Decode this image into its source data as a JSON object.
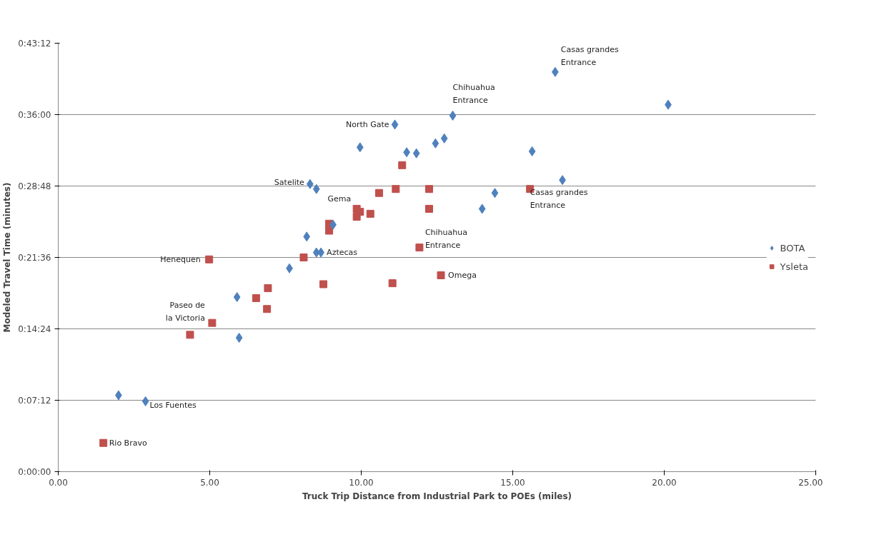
{
  "chart_data": {
    "type": "scatter",
    "xlabel": "Truck Trip Distance from Industrial Park to POEs (miles)",
    "ylabel": "Modeled Travel Time (minutes)",
    "xlim": [
      0,
      25
    ],
    "xticks": [
      {
        "value": 0,
        "label": "0.00"
      },
      {
        "value": 5,
        "label": "5.00"
      },
      {
        "value": 10,
        "label": "10.00"
      },
      {
        "value": 15,
        "label": "15.00"
      },
      {
        "value": 20,
        "label": "20.00"
      },
      {
        "value": 25,
        "label": "25.00"
      }
    ],
    "ylim": [
      0,
      43.2
    ],
    "yticks": [
      {
        "value": 0,
        "label": "0:00:00"
      },
      {
        "value": 7.2,
        "label": "0:07:12"
      },
      {
        "value": 14.4,
        "label": "0:14:24"
      },
      {
        "value": 21.6,
        "label": "0:21:36"
      },
      {
        "value": 28.8,
        "label": "0:28:48"
      },
      {
        "value": 36,
        "label": "0:36:00"
      },
      {
        "value": 43.2,
        "label": "0:43:12"
      }
    ],
    "grid": "y",
    "legend": "right",
    "series": [
      {
        "name": "BOTA",
        "color": "#4f81bd",
        "marker": "diamond",
        "x": [
          1.99,
          2.88,
          5.9,
          5.97,
          7.63,
          8.2,
          8.31,
          8.52,
          8.52,
          8.67,
          9.07,
          9.96,
          11.11,
          11.5,
          11.82,
          12.45,
          12.74,
          13.02,
          13.99,
          14.41,
          15.64,
          16.4,
          16.64,
          20.13
        ],
        "values": [
          7.7,
          7.1,
          17.6,
          13.5,
          20.5,
          23.7,
          29.0,
          28.5,
          22.1,
          22.1,
          24.9,
          32.7,
          35.0,
          32.2,
          32.1,
          33.1,
          33.6,
          35.9,
          26.5,
          28.1,
          32.3,
          40.3,
          29.4,
          37.0
        ]
      },
      {
        "name": "Ysleta",
        "color": "#c0504d",
        "marker": "square",
        "x": [
          1.49,
          4.35,
          4.98,
          5.08,
          6.53,
          6.89,
          6.92,
          8.1,
          8.75,
          8.94,
          8.94,
          9.85,
          9.85,
          9.96,
          10.3,
          10.59,
          11.14,
          11.03,
          11.35,
          11.92,
          12.24,
          12.24,
          12.63,
          15.57
        ],
        "values": [
          2.9,
          13.8,
          21.4,
          15.0,
          17.5,
          16.4,
          18.5,
          21.6,
          18.9,
          24.3,
          25.0,
          26.5,
          25.7,
          26.2,
          26.0,
          28.1,
          28.5,
          19.0,
          30.9,
          22.6,
          28.5,
          26.5,
          19.8,
          28.5
        ]
      }
    ],
    "annotations": [
      {
        "text": "Casas grandes\nEntrance",
        "x": 16.4,
        "y": 40.3
      },
      {
        "text": "Chihuahua\nEntrance",
        "x": 13.02,
        "y": 35.9
      },
      {
        "text": "North Gate",
        "x": 11.11,
        "y": 35.0
      },
      {
        "text": "Satelite",
        "x": 8.31,
        "y": 29.0
      },
      {
        "text": "Casas grandes\nEntrance",
        "x": 15.57,
        "y": 28.5
      },
      {
        "text": "Gema",
        "x": 9.85,
        "y": 26.5
      },
      {
        "text": "Aztecas",
        "x": 8.67,
        "y": 22.1
      },
      {
        "text": "Henequen",
        "x": 4.98,
        "y": 21.4
      },
      {
        "text": "Chihuahua\nEntrance",
        "x": 11.92,
        "y": 22.6
      },
      {
        "text": "Omega",
        "x": 12.63,
        "y": 19.8
      },
      {
        "text": "Paseo de\nla Victoria",
        "x": 5.08,
        "y": 15.0
      },
      {
        "text": "Los Fuentes",
        "x": 2.88,
        "y": 7.1
      },
      {
        "text": "Rio Bravo",
        "x": 1.49,
        "y": 2.9
      }
    ]
  }
}
